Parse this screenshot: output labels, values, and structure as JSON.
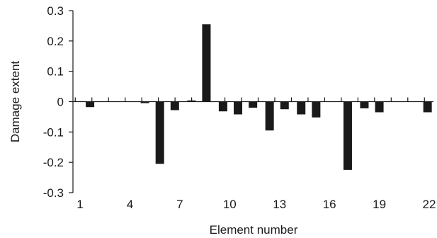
{
  "chart_data": {
    "type": "bar",
    "xlabel": "Element number",
    "ylabel": "Damage extent",
    "ylim": [
      -0.3,
      0.3
    ],
    "yticks": [
      0.3,
      0.2,
      0.1,
      0,
      -0.1,
      -0.2,
      -0.3
    ],
    "ytick_labels": [
      "0.3",
      "0.2",
      "0.1",
      "0",
      "-0.1",
      "-0.2",
      "-0.3"
    ],
    "xlim": [
      1,
      22
    ],
    "xtick_labels": [
      "1",
      "4",
      "7",
      "10",
      "13",
      "16",
      "19",
      "22"
    ],
    "grid": false,
    "legend": "none",
    "bar_color": "#1a1a1a",
    "series": [
      {
        "x": [
          1.6,
          2,
          3,
          4,
          4.9,
          5.8,
          6.7,
          7.7,
          8.6,
          9.6,
          10.5,
          11.4,
          12.4,
          13.3,
          14.3,
          15.2,
          16.2,
          17.1,
          18.1,
          19,
          20,
          20.9,
          21.9
        ],
        "values": [
          -0.018,
          0,
          0,
          0,
          -0.005,
          -0.205,
          -0.028,
          0.004,
          0.255,
          -0.032,
          -0.042,
          -0.02,
          -0.095,
          -0.025,
          -0.042,
          -0.052,
          0,
          -0.225,
          -0.022,
          -0.035,
          0,
          0,
          -0.035
        ]
      }
    ]
  }
}
